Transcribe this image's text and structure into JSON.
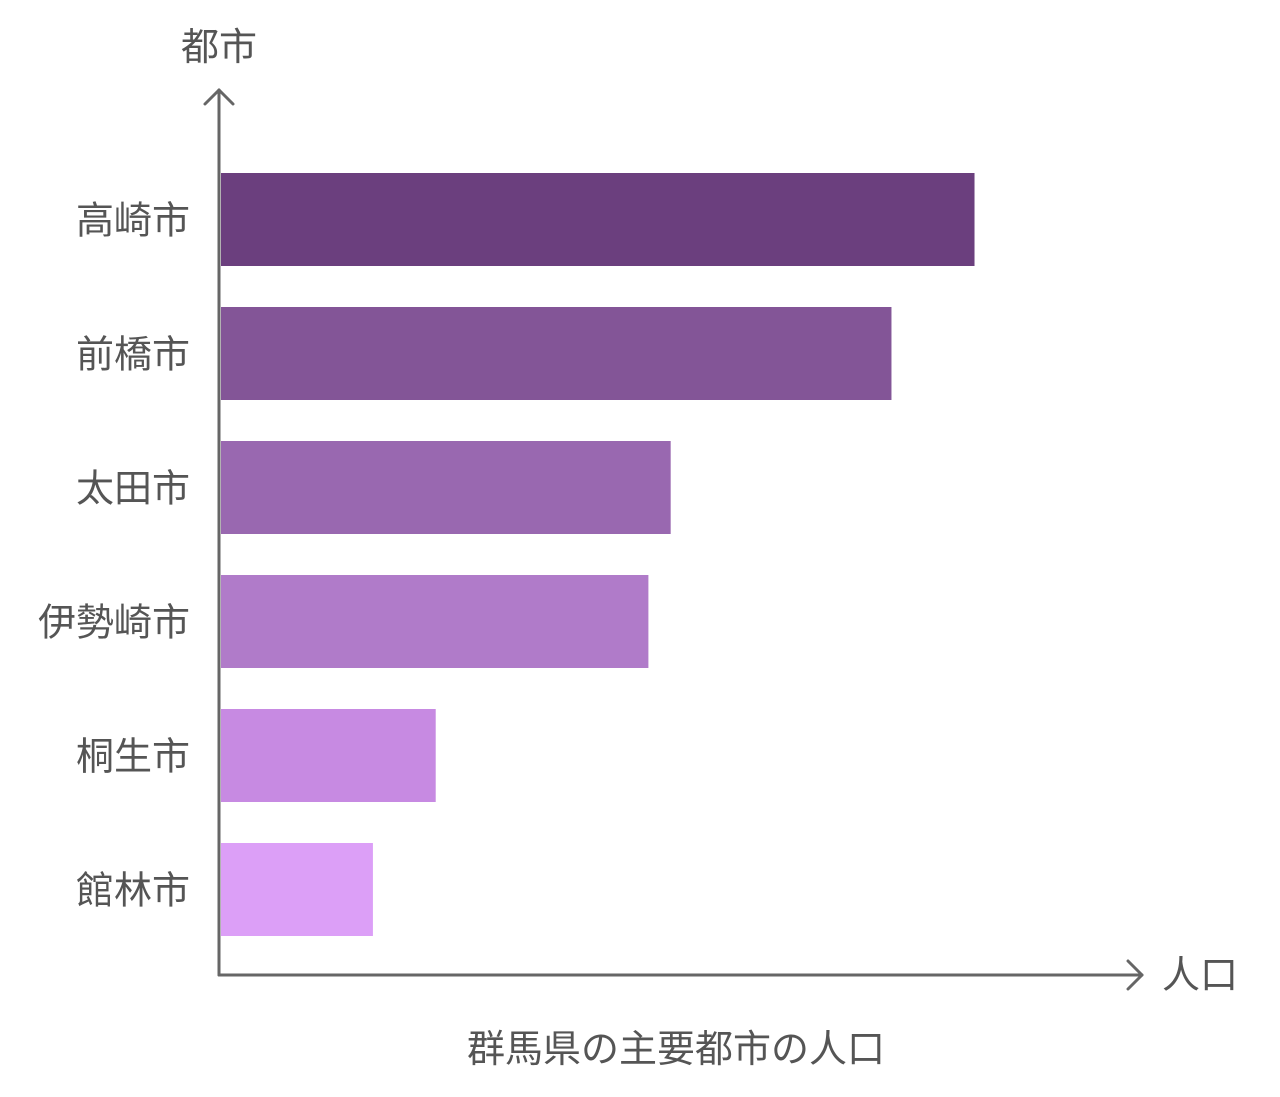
{
  "chart_data": {
    "type": "bar",
    "orientation": "horizontal",
    "title": "群馬県の主要都市の人口",
    "xlabel": "人口",
    "ylabel": "都市",
    "categories": [
      "高崎市",
      "前橋市",
      "太田市",
      "伊勢崎市",
      "桐生市",
      "館林市"
    ],
    "values": [
      372,
      331,
      222,
      211,
      106,
      75
    ],
    "xlim": [
      0,
      430
    ],
    "grid": false,
    "legend": "none",
    "colors": [
      "#6b3f7e",
      "#835597",
      "#9968b0",
      "#b07bc9",
      "#c78ae2",
      "#dc9ff7"
    ],
    "axis_color": "#666666",
    "text_color": "#555555"
  }
}
